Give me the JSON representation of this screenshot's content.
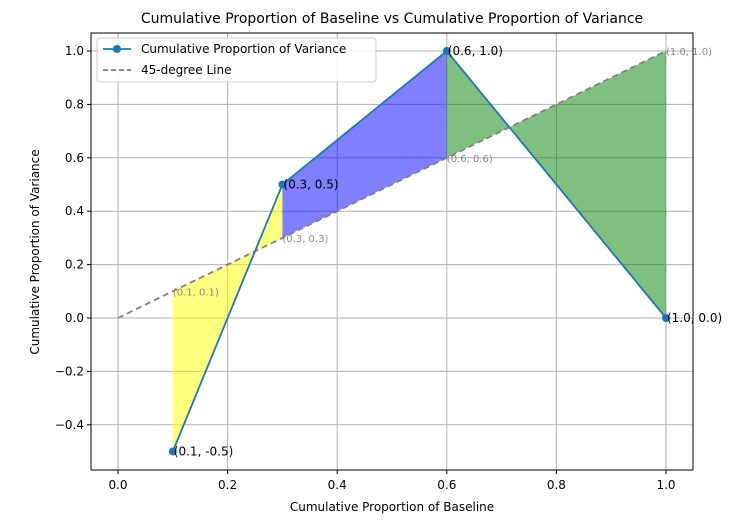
{
  "chart_data": {
    "type": "line",
    "title": "Cumulative Proportion of Baseline vs Cumulative Proportion of Variance",
    "xlabel": "Cumulative Proportion of Baseline",
    "ylabel": "Cumulative Proportion of Variance",
    "xlim": [
      -0.05,
      1.05
    ],
    "ylim": [
      -0.55,
      1.06
    ],
    "xticks": [
      0.0,
      0.2,
      0.4,
      0.6,
      0.8,
      1.0
    ],
    "xtick_labels": [
      "0.0",
      "0.2",
      "0.4",
      "0.6",
      "0.8",
      "1.0"
    ],
    "yticks": [
      -0.4,
      -0.2,
      0.0,
      0.2,
      0.4,
      0.6,
      0.8,
      1.0
    ],
    "ytick_labels": [
      "−0.4",
      "−0.2",
      "0.0",
      "0.2",
      "0.4",
      "0.6",
      "0.8",
      "1.0"
    ],
    "grid": true,
    "legend_position": "top-left",
    "series": [
      {
        "name": "Cumulative Proportion of Variance",
        "color": "#1f77b4",
        "style": "solid-marker",
        "x": [
          0.1,
          0.3,
          0.6,
          1.0
        ],
        "y": [
          -0.5,
          0.5,
          1.0,
          0.0
        ],
        "labels": [
          "(0.1, -0.5)",
          "(0.3, 0.5)",
          "(0.6, 1.0)",
          "(1.0, 0.0)"
        ]
      },
      {
        "name": "45-degree Line",
        "color": "#808080",
        "style": "dashed",
        "x": [
          0.0,
          1.0
        ],
        "y": [
          0.0,
          1.0
        ],
        "labels": [
          "(0.1, 0.1)",
          "(0.3, 0.3)",
          "(0.6, 0.6)",
          "(1.0, 1.0)"
        ],
        "label_x": [
          0.1,
          0.3,
          0.6,
          1.0
        ]
      }
    ],
    "fills": [
      {
        "x": [
          0.1,
          0.3
        ],
        "color": "#ffff00"
      },
      {
        "x": [
          0.3,
          0.6
        ],
        "color": "#0000ff"
      },
      {
        "x": [
          0.6,
          1.0
        ],
        "color": "#008000"
      }
    ]
  }
}
